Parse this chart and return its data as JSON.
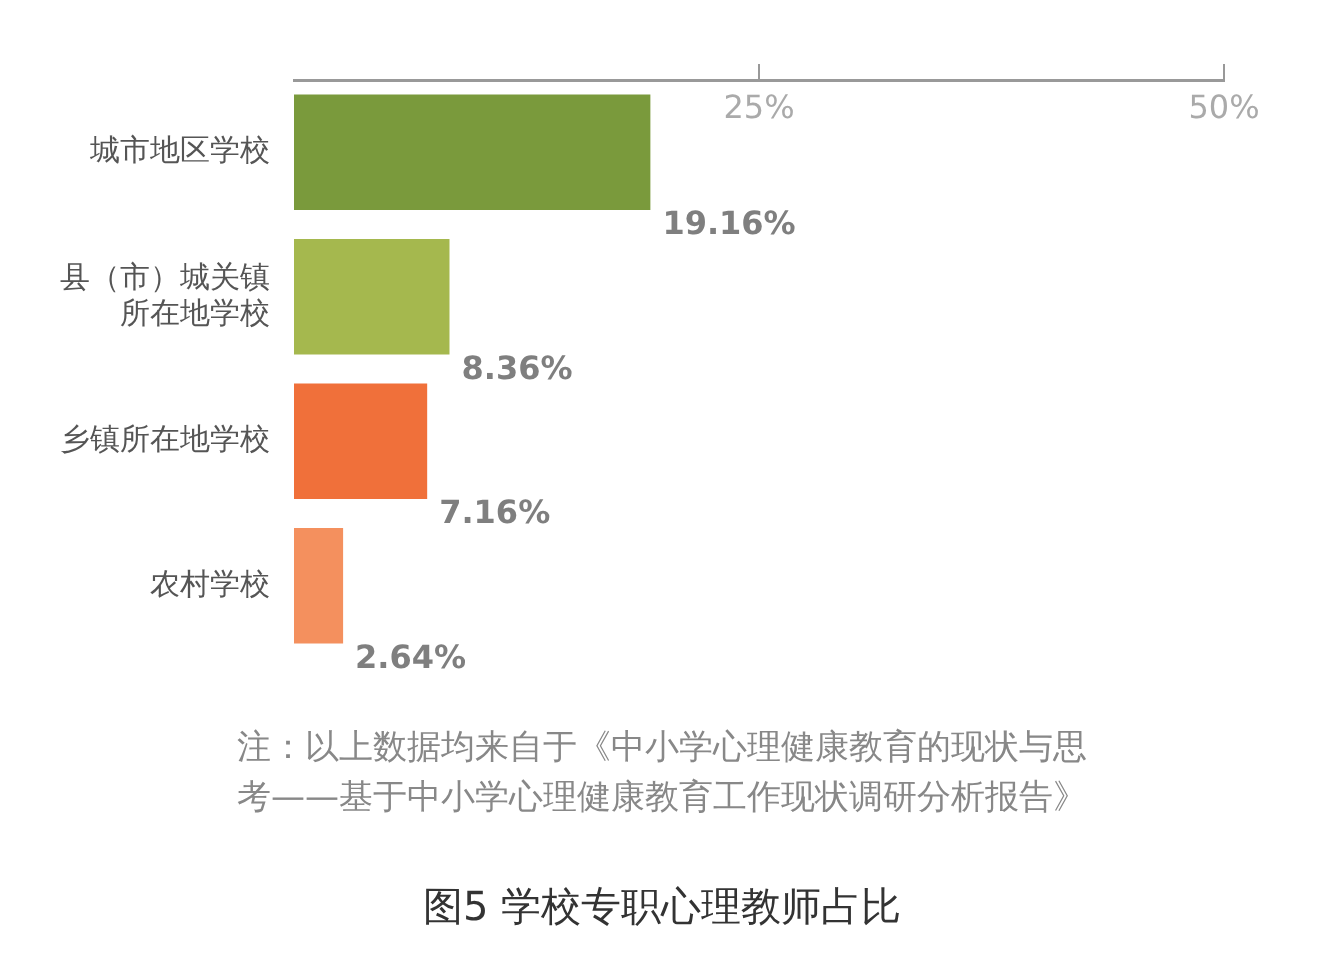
{
  "chart_data": {
    "type": "bar",
    "orientation": "horizontal",
    "title": "图5 学校专职心理教师占比",
    "categories": [
      "城市地区学校",
      "县（市）城关镇所在地学校",
      "乡镇所在地学校",
      "农村学校"
    ],
    "values": [
      19.16,
      8.36,
      7.16,
      2.64
    ],
    "colors": [
      "#7a9a3c",
      "#a5b84e",
      "#f0703a",
      "#f4905e"
    ],
    "value_labels": [
      "19.16%",
      "8.36%",
      "7.16%",
      "2.64%"
    ],
    "xlim": [
      0,
      50
    ],
    "xticks": [
      {
        "value": 25,
        "label": "25%"
      },
      {
        "value": 50,
        "label": "50%"
      }
    ],
    "grid": false,
    "legend": false,
    "annotations": [
      "注：以上数据均来自于《中小学心理健康教育的现状与思考——基于中小学心理健康教育工作现状调研分析报告》"
    ]
  }
}
